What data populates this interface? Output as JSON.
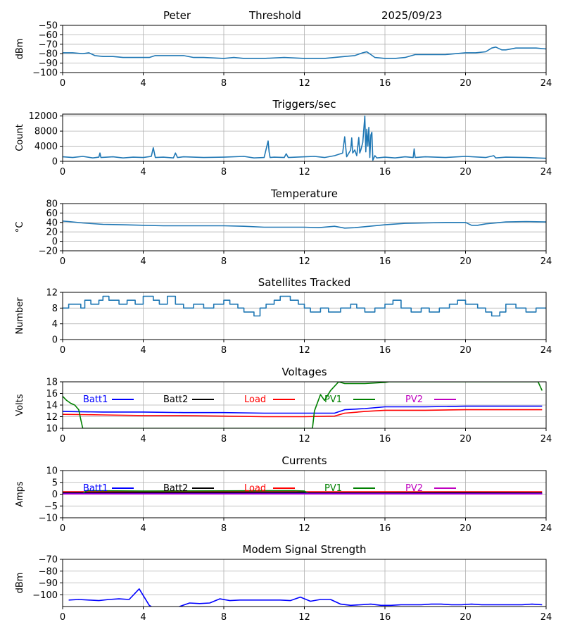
{
  "header": {
    "station": "Peter",
    "mode": "Threshold",
    "date": "2025/09/23"
  },
  "chart_data": [
    {
      "id": "rssi",
      "type": "line",
      "title": "",
      "xlabel": "",
      "ylabel": "dBm",
      "xlim": [
        0,
        24
      ],
      "ylim": [
        -100,
        -50
      ],
      "xticks": [
        0,
        4,
        8,
        12,
        16,
        20,
        24
      ],
      "yticks": [
        -100,
        -90,
        -80,
        -70,
        -60,
        -50
      ],
      "ytick_labels": [
        "−100",
        "−90",
        "−80",
        "−70",
        "−60",
        "−50"
      ],
      "grid": true,
      "series": [
        {
          "color": "#1f77b4",
          "x": [
            0,
            0.5,
            1,
            1.3,
            1.6,
            2,
            2.5,
            3,
            3.5,
            4,
            4.3,
            4.6,
            5,
            6,
            6.5,
            7,
            8,
            8.5,
            9,
            10,
            11,
            12,
            13,
            13.5,
            14,
            14.5,
            14.9,
            15.1,
            15.3,
            15.5,
            16,
            16.5,
            17,
            17.5,
            18,
            19,
            19.5,
            20,
            20.5,
            21,
            21.3,
            21.5,
            21.8,
            22,
            22.5,
            23,
            23.5,
            24
          ],
          "y": [
            -79,
            -79,
            -80,
            -79,
            -82,
            -83,
            -83,
            -84,
            -84,
            -84,
            -84,
            -82,
            -82,
            -82,
            -84,
            -84,
            -85,
            -84,
            -85,
            -85,
            -84,
            -85,
            -85,
            -84,
            -83,
            -82,
            -79,
            -78,
            -81,
            -84,
            -85,
            -85,
            -84,
            -81,
            -81,
            -81,
            -80,
            -79,
            -79,
            -78,
            -74,
            -73,
            -76,
            -76,
            -74,
            -74,
            -74,
            -75
          ]
        }
      ]
    },
    {
      "id": "triggers",
      "type": "line",
      "title": "Triggers/sec",
      "xlabel": "",
      "ylabel": "Count",
      "xlim": [
        0,
        24
      ],
      "ylim": [
        0,
        12500
      ],
      "xticks": [
        0,
        4,
        8,
        12,
        16,
        20,
        24
      ],
      "yticks": [
        0,
        4000,
        8000,
        12000
      ],
      "ytick_labels": [
        "0",
        "4000",
        "8000",
        "12000"
      ],
      "grid": true,
      "series": [
        {
          "color": "#1f77b4",
          "x": [
            0,
            0.5,
            1,
            1.5,
            1.8,
            1.85,
            1.9,
            2.5,
            3,
            3.5,
            4,
            4.4,
            4.5,
            4.6,
            5,
            5.5,
            5.6,
            5.7,
            6,
            7,
            8,
            9,
            9.5,
            10,
            10.2,
            10.25,
            10.3,
            10.5,
            11,
            11.1,
            11.2,
            12,
            12.5,
            13,
            13.5,
            13.9,
            14,
            14.1,
            14.3,
            14.35,
            14.4,
            14.5,
            14.6,
            14.7,
            14.75,
            14.8,
            14.9,
            15,
            15.05,
            15.1,
            15.15,
            15.2,
            15.25,
            15.3,
            15.35,
            15.4,
            15.5,
            15.6,
            16,
            16.5,
            17,
            17.4,
            17.45,
            17.5,
            18,
            19,
            20,
            21,
            21.4,
            21.5,
            22,
            23,
            24
          ],
          "y": [
            1200,
            1000,
            1300,
            900,
            1100,
            2200,
            1000,
            1200,
            900,
            1100,
            1000,
            1300,
            3600,
            1000,
            1100,
            900,
            2200,
            1000,
            1200,
            1000,
            1100,
            1300,
            900,
            1000,
            5400,
            2500,
            1000,
            1100,
            1000,
            2000,
            1000,
            1200,
            1300,
            1000,
            1500,
            2200,
            6500,
            1200,
            3000,
            6200,
            2200,
            3000,
            1500,
            6300,
            2200,
            3000,
            5000,
            12000,
            2500,
            8500,
            4000,
            9000,
            1000,
            7000,
            7700,
            300,
            1500,
            900,
            1100,
            900,
            1200,
            1000,
            3300,
            1000,
            1200,
            1000,
            1300,
            1000,
            1500,
            900,
            1100,
            1000,
            800
          ]
        }
      ]
    },
    {
      "id": "temperature",
      "type": "line",
      "title": "Temperature",
      "xlabel": "",
      "ylabel": "°C",
      "xlim": [
        0,
        24
      ],
      "ylim": [
        -20,
        80
      ],
      "xticks": [
        0,
        4,
        8,
        12,
        16,
        20,
        24
      ],
      "yticks": [
        -20,
        0,
        20,
        40,
        60,
        80
      ],
      "ytick_labels": [
        "−20",
        "0",
        "20",
        "40",
        "60",
        "80"
      ],
      "grid": true,
      "series": [
        {
          "color": "#1f77b4",
          "x": [
            0,
            0.3,
            1,
            2,
            3,
            4,
            5,
            6,
            7,
            8,
            9,
            10,
            11,
            12,
            12.7,
            13.5,
            14,
            14.5,
            15,
            16,
            17,
            18,
            19,
            20,
            20.3,
            20.6,
            21,
            22,
            23,
            24
          ],
          "y": [
            43,
            42,
            39,
            36,
            35,
            34,
            33,
            33,
            33,
            33,
            32,
            30,
            30,
            30,
            29,
            32,
            28,
            29,
            31,
            35,
            38,
            39,
            40,
            40,
            34,
            34,
            37,
            41,
            42,
            41
          ]
        }
      ]
    },
    {
      "id": "satellites",
      "type": "line",
      "title": "Satellites Tracked",
      "xlabel": "",
      "ylabel": "Number",
      "xlim": [
        0,
        24
      ],
      "ylim": [
        0,
        12
      ],
      "xticks": [
        0,
        4,
        8,
        12,
        16,
        20,
        24
      ],
      "yticks": [
        0,
        4,
        8,
        12
      ],
      "ytick_labels": [
        "0",
        "4",
        "8",
        "12"
      ],
      "grid": true,
      "series": [
        {
          "color": "#1f77b4",
          "step": true,
          "x": [
            0,
            0.3,
            0.9,
            1.1,
            1.4,
            1.8,
            2,
            2.3,
            2.8,
            3.2,
            3.6,
            4,
            4.5,
            4.8,
            5.2,
            5.6,
            6,
            6.5,
            7,
            7.5,
            8,
            8.3,
            8.7,
            9,
            9.5,
            9.8,
            10.1,
            10.5,
            10.8,
            11.3,
            11.7,
            12,
            12.3,
            12.8,
            13.2,
            13.8,
            14.3,
            14.6,
            15,
            15.5,
            16,
            16.4,
            16.8,
            17.3,
            17.8,
            18.2,
            18.7,
            19.2,
            19.6,
            20,
            20.6,
            21,
            21.3,
            21.7,
            22,
            22.5,
            23,
            23.5,
            24
          ],
          "y": [
            8,
            9,
            8,
            10,
            9,
            10,
            11,
            10,
            9,
            10,
            9,
            11,
            10,
            9,
            11,
            9,
            8,
            9,
            8,
            9,
            10,
            9,
            8,
            7,
            6,
            8,
            9,
            10,
            11,
            10,
            9,
            8,
            7,
            8,
            7,
            8,
            9,
            8,
            7,
            8,
            9,
            10,
            8,
            7,
            8,
            7,
            8,
            9,
            10,
            9,
            8,
            7,
            6,
            7,
            9,
            8,
            7,
            8,
            8
          ]
        }
      ]
    },
    {
      "id": "voltages",
      "type": "line",
      "title": "Voltages",
      "xlabel": "",
      "ylabel": "Volts",
      "xlim": [
        0,
        24
      ],
      "ylim": [
        10,
        18
      ],
      "xticks": [
        0,
        4,
        8,
        12,
        16,
        20,
        24
      ],
      "yticks": [
        10,
        12,
        14,
        16,
        18
      ],
      "ytick_labels": [
        "10",
        "12",
        "14",
        "16",
        "18"
      ],
      "grid": true,
      "legend": [
        "Batt1",
        "Batt2",
        "Load",
        "PV1",
        "PV2"
      ],
      "series": [
        {
          "name": "Batt1",
          "color": "#0000ff",
          "x": [
            0,
            2,
            4,
            6,
            8,
            10,
            12,
            13.5,
            14,
            15,
            16,
            18,
            20,
            22,
            23.8
          ],
          "y": [
            12.9,
            12.8,
            12.8,
            12.7,
            12.7,
            12.6,
            12.6,
            12.6,
            13.2,
            13.4,
            13.7,
            13.7,
            13.8,
            13.8,
            13.8
          ]
        },
        {
          "name": "Batt2",
          "color": "#000000",
          "x": [],
          "y": []
        },
        {
          "name": "Load",
          "color": "#ff0000",
          "x": [
            0,
            2,
            4,
            6,
            8,
            10,
            12,
            13.5,
            14,
            15,
            16,
            18,
            20,
            22,
            23.8
          ],
          "y": [
            12.4,
            12.3,
            12.2,
            12.2,
            12.1,
            12.0,
            12.0,
            12.1,
            12.6,
            12.9,
            13.1,
            13.1,
            13.2,
            13.2,
            13.2
          ]
        },
        {
          "name": "PV1",
          "color": "#008000",
          "x": [
            0,
            0.2,
            0.4,
            0.6,
            0.8,
            0.9,
            1.0,
            12.4,
            12.5,
            12.8,
            13.0,
            13.3,
            13.7,
            14.0,
            15.0,
            16.0,
            16.2,
            23.6,
            23.8
          ],
          "y": [
            15.5,
            14.8,
            14.3,
            14.0,
            13.2,
            11.5,
            10.0,
            10.0,
            13.0,
            15.8,
            14.8,
            16.5,
            18.0,
            17.7,
            17.7,
            17.9,
            18.0,
            18.0,
            16.5
          ]
        },
        {
          "name": "PV2",
          "color": "#bf00bf",
          "x": [],
          "y": []
        }
      ]
    },
    {
      "id": "currents",
      "type": "line",
      "title": "Currents",
      "xlabel": "",
      "ylabel": "Amps",
      "xlim": [
        0,
        24
      ],
      "ylim": [
        -10,
        10
      ],
      "xticks": [
        0,
        4,
        8,
        12,
        16,
        20,
        24
      ],
      "yticks": [
        -10,
        -5,
        0,
        5,
        10
      ],
      "ytick_labels": [
        "−10",
        "−5",
        "0",
        "5",
        "10"
      ],
      "grid": true,
      "legend": [
        "Batt1",
        "Batt2",
        "Load",
        "PV1",
        "PV2"
      ],
      "series": [
        {
          "name": "Load",
          "color": "#ff0000",
          "x": [
            0,
            4,
            8,
            12,
            16,
            20,
            23.8
          ],
          "y": [
            1.0,
            1.0,
            1.0,
            1.0,
            1.0,
            1.0,
            1.0
          ]
        },
        {
          "name": "Batt2",
          "color": "#000000",
          "x": [
            0,
            4,
            8,
            12,
            12.2,
            16,
            20,
            23.8
          ],
          "y": [
            0.6,
            0.7,
            0.7,
            0.8,
            0.5,
            0.5,
            0.6,
            0.5
          ]
        },
        {
          "name": "PV1",
          "color": "#008000",
          "x": [
            0,
            1.0,
            1.2,
            4,
            8,
            11.5,
            12.0,
            12.2
          ],
          "y": [
            0.2,
            0.2,
            1.5,
            1.3,
            1.4,
            1.5,
            1.3,
            0.2
          ]
        },
        {
          "name": "Batt1",
          "color": "#0000ff",
          "x": [
            0,
            8,
            16,
            23.8
          ],
          "y": [
            0.3,
            0.3,
            0.3,
            0.3
          ]
        },
        {
          "name": "PV2",
          "color": "#bf00bf",
          "x": [
            0,
            8,
            16,
            23.8
          ],
          "y": [
            0.1,
            0.1,
            0.1,
            0.1
          ]
        }
      ]
    },
    {
      "id": "modem",
      "type": "line",
      "title": "Modem Signal Strength",
      "xlabel": "",
      "ylabel": "dBm",
      "xlim": [
        0,
        24
      ],
      "ylim": [
        -110,
        -70
      ],
      "xticks": [
        0,
        4,
        8,
        12,
        16,
        20,
        24
      ],
      "yticks": [
        -100,
        -90,
        -80,
        -70
      ],
      "ytick_labels": [
        "−100",
        "−90",
        "−80",
        "−70"
      ],
      "grid": true,
      "series": [
        {
          "color": "#0000ff",
          "x": [
            0.3,
            0.8,
            1.3,
            1.8,
            2.3,
            2.8,
            3.3,
            3.8,
            4.3,
            4.8,
            5.3,
            5.8,
            6.3,
            6.8,
            7.3,
            7.8,
            8.3,
            8.8,
            9.3,
            9.8,
            10.3,
            10.8,
            11.3,
            11.8,
            12.3,
            12.8,
            13.3,
            13.8,
            14.3,
            14.8,
            15.3,
            15.8,
            16.3,
            16.8,
            17.3,
            17.8,
            18.3,
            18.8,
            19.3,
            19.8,
            20.3,
            20.8,
            21.3,
            21.8,
            22.3,
            22.8,
            23.3,
            23.8
          ],
          "y": [
            -104.5,
            -104,
            -104.5,
            -105,
            -104,
            -103.5,
            -104,
            -95,
            -109,
            -114,
            -112,
            -110,
            -107,
            -107.5,
            -107,
            -103.5,
            -105,
            -104.5,
            -104.5,
            -104.5,
            -104.5,
            -104.5,
            -105,
            -102,
            -105.5,
            -104,
            -104,
            -108,
            -109,
            -108.5,
            -108,
            -109,
            -109,
            -108.5,
            -108.5,
            -108.5,
            -108,
            -108,
            -108.5,
            -108.5,
            -108,
            -108.5,
            -108.5,
            -108.5,
            -108.5,
            -108.5,
            -108,
            -108.5
          ]
        }
      ]
    }
  ]
}
